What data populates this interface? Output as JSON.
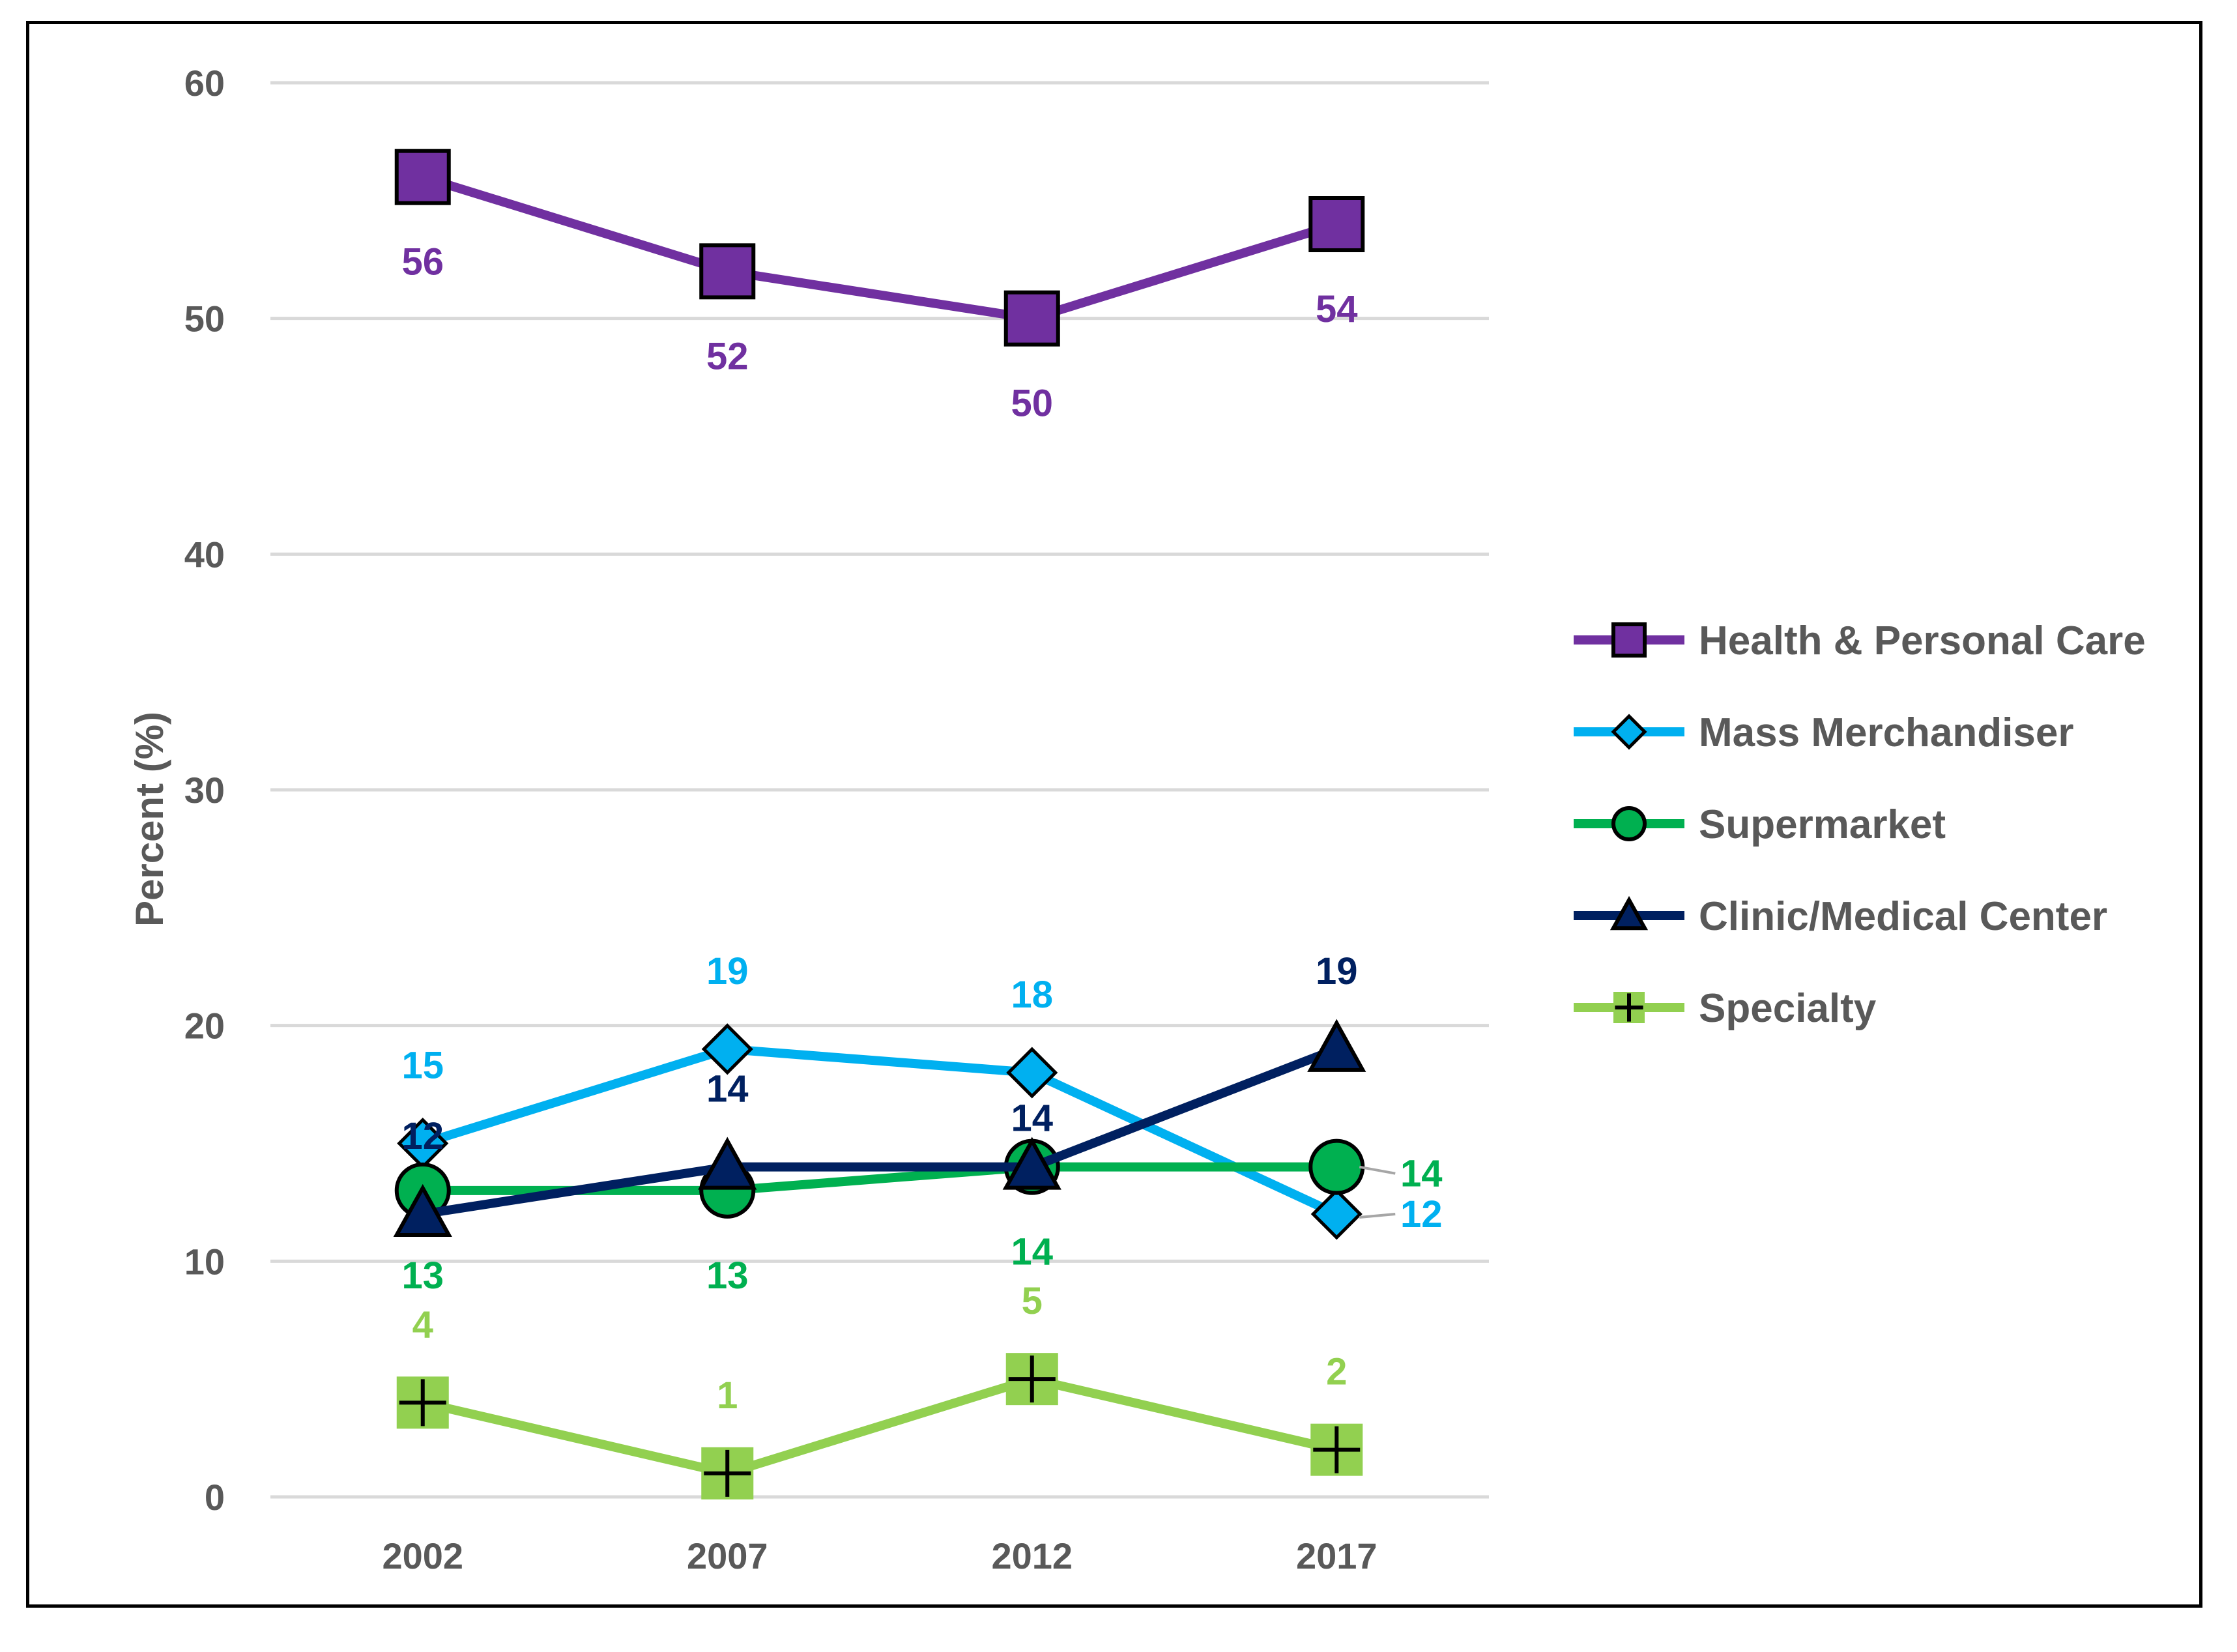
{
  "chart_data": {
    "type": "line",
    "title": "",
    "xlabel": "",
    "ylabel": "Percent (%)",
    "ylim": [
      0,
      60
    ],
    "yticks": [
      0,
      10,
      20,
      30,
      40,
      50,
      60
    ],
    "grid": true,
    "legend_position": "right",
    "categories": [
      "2002",
      "2007",
      "2012",
      "2017"
    ],
    "series": [
      {
        "name": "Health & Personal Care",
        "values": [
          56,
          52,
          50,
          54
        ],
        "color": "#7030a0",
        "marker": "square"
      },
      {
        "name": "Mass Merchandiser",
        "values": [
          15,
          19,
          18,
          12
        ],
        "color": "#00b0f0",
        "marker": "diamond"
      },
      {
        "name": "Supermarket",
        "values": [
          13,
          13,
          14,
          14
        ],
        "color": "#00b050",
        "marker": "circle"
      },
      {
        "name": "Clinic/Medical Center",
        "values": [
          12,
          14,
          14,
          19
        ],
        "color": "#002060",
        "marker": "triangle"
      },
      {
        "name": "Specialty",
        "values": [
          4,
          1,
          5,
          2
        ],
        "color": "#92d050",
        "marker": "plus"
      }
    ]
  }
}
